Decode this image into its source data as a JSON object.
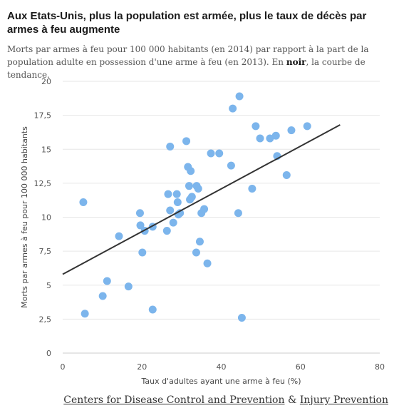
{
  "header": {
    "title": "Aux Etats-Unis, plus la population est armée, plus le taux de décès par armes à feu augmente",
    "subtitle_pre": "Morts par armes à feu pour 100 000 habitants (en 2014) par rapport à la part de la population adulte en possession d'une arme à feu (en 2013). En ",
    "subtitle_bold": "noir",
    "subtitle_post": ", la courbe de tendance."
  },
  "colors": {
    "point": "#7cb5ec",
    "trend": "#333333",
    "grid": "#e6e6e6"
  },
  "chart_data": {
    "type": "scatter",
    "title": "Aux Etats-Unis, plus la population est armée, plus le taux de décès par armes à feu augmente",
    "xlabel": "Taux d'adultes ayant une arme à feu (%)",
    "ylabel": "Morts par armes à feu pour 100 000 habitants",
    "xlim": [
      0,
      80
    ],
    "ylim": [
      0,
      20
    ],
    "x_ticks": [
      "0",
      "20",
      "40",
      "60",
      "80"
    ],
    "y_ticks": [
      "0",
      "2,5",
      "5",
      "7,5",
      "10",
      "12,5",
      "15",
      "17,5",
      "20"
    ],
    "grid": "horizontal",
    "trend": {
      "x": [
        0,
        70
      ],
      "y": [
        5.8,
        16.8
      ]
    },
    "points": [
      {
        "x": 5.2,
        "y": 11.1
      },
      {
        "x": 5.6,
        "y": 2.9
      },
      {
        "x": 10.1,
        "y": 4.2
      },
      {
        "x": 11.2,
        "y": 5.3
      },
      {
        "x": 14.2,
        "y": 8.6
      },
      {
        "x": 16.6,
        "y": 4.9
      },
      {
        "x": 19.5,
        "y": 10.3
      },
      {
        "x": 19.6,
        "y": 9.4
      },
      {
        "x": 20.1,
        "y": 7.4
      },
      {
        "x": 20.7,
        "y": 9.0
      },
      {
        "x": 22.7,
        "y": 3.2
      },
      {
        "x": 22.7,
        "y": 9.3
      },
      {
        "x": 26.3,
        "y": 9.0
      },
      {
        "x": 26.6,
        "y": 11.7
      },
      {
        "x": 27.1,
        "y": 15.2
      },
      {
        "x": 27.1,
        "y": 10.5
      },
      {
        "x": 27.9,
        "y": 9.6
      },
      {
        "x": 28.8,
        "y": 11.7
      },
      {
        "x": 29.0,
        "y": 11.1
      },
      {
        "x": 29.2,
        "y": 10.2
      },
      {
        "x": 29.6,
        "y": 10.3
      },
      {
        "x": 31.2,
        "y": 15.6
      },
      {
        "x": 31.6,
        "y": 13.7
      },
      {
        "x": 31.9,
        "y": 12.3
      },
      {
        "x": 32.1,
        "y": 11.3
      },
      {
        "x": 32.3,
        "y": 13.4
      },
      {
        "x": 32.6,
        "y": 11.5
      },
      {
        "x": 33.7,
        "y": 7.4
      },
      {
        "x": 33.8,
        "y": 12.3
      },
      {
        "x": 34.2,
        "y": 12.1
      },
      {
        "x": 34.6,
        "y": 8.2
      },
      {
        "x": 35.0,
        "y": 10.3
      },
      {
        "x": 35.7,
        "y": 10.6
      },
      {
        "x": 36.5,
        "y": 6.6
      },
      {
        "x": 37.4,
        "y": 14.7
      },
      {
        "x": 39.5,
        "y": 14.7
      },
      {
        "x": 42.5,
        "y": 13.8
      },
      {
        "x": 42.9,
        "y": 18.0
      },
      {
        "x": 44.3,
        "y": 10.3
      },
      {
        "x": 44.6,
        "y": 18.9
      },
      {
        "x": 45.2,
        "y": 2.6
      },
      {
        "x": 47.8,
        "y": 12.1
      },
      {
        "x": 48.7,
        "y": 16.7
      },
      {
        "x": 49.8,
        "y": 15.8
      },
      {
        "x": 52.3,
        "y": 15.8
      },
      {
        "x": 53.8,
        "y": 16.0
      },
      {
        "x": 54.1,
        "y": 14.5
      },
      {
        "x": 56.5,
        "y": 13.1
      },
      {
        "x": 57.7,
        "y": 16.4
      },
      {
        "x": 61.7,
        "y": 16.7
      }
    ]
  },
  "source": {
    "org1": "Centers for Disease Control and Prevention",
    "amp": " & ",
    "org2": "Injury Prevention"
  }
}
